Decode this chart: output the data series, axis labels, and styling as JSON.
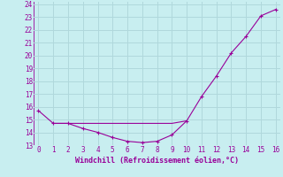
{
  "xlabel": "Windchill (Refroidissement éolien,°C)",
  "bg_color": "#c8eef0",
  "grid_color": "#b0d8dc",
  "line_color": "#990099",
  "line1_x": [
    0,
    1,
    2,
    3,
    4,
    5,
    6,
    7,
    8,
    9,
    10,
    11,
    12,
    13,
    14,
    15,
    16
  ],
  "line1_y": [
    15.7,
    14.7,
    14.7,
    14.3,
    14.0,
    13.6,
    13.3,
    13.2,
    13.3,
    13.8,
    14.9,
    16.8,
    18.4,
    20.2,
    21.5,
    23.1,
    23.6
  ],
  "line2_x": [
    1,
    2,
    3,
    4,
    5,
    6,
    7,
    8,
    9,
    10
  ],
  "line2_y": [
    14.7,
    14.7,
    14.7,
    14.7,
    14.7,
    14.7,
    14.7,
    14.7,
    14.7,
    14.9
  ],
  "xlim": [
    -0.3,
    16.3
  ],
  "ylim": [
    13,
    24.2
  ],
  "yticks": [
    13,
    14,
    15,
    16,
    17,
    18,
    19,
    20,
    21,
    22,
    23,
    24
  ],
  "xticks": [
    0,
    1,
    2,
    3,
    4,
    5,
    6,
    7,
    8,
    9,
    10,
    11,
    12,
    13,
    14,
    15,
    16
  ],
  "tick_fontsize": 5.5,
  "xlabel_fontsize": 6.0
}
